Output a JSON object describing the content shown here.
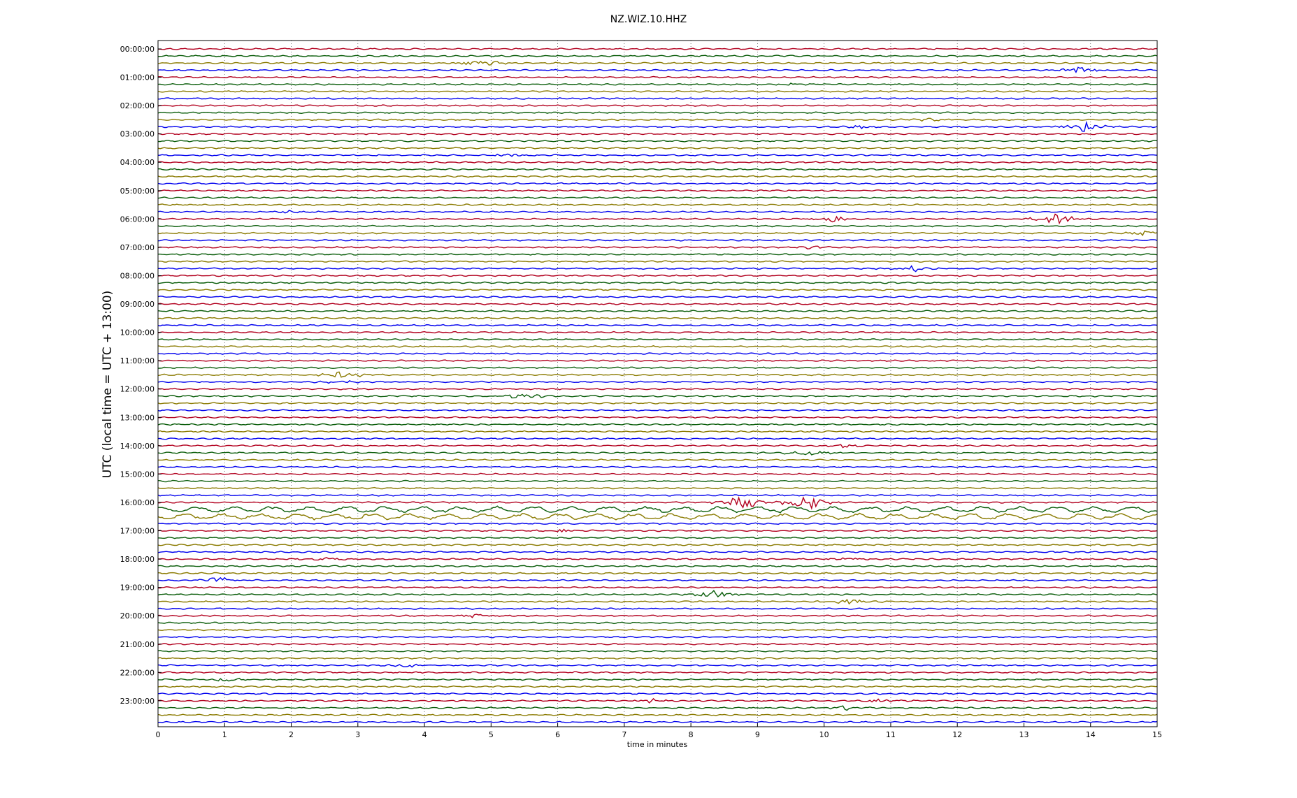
{
  "chart_data": {
    "type": "line",
    "title": "NZ.WIZ.10.HHZ",
    "xlabel": "time in minutes",
    "ylabel": "UTC (local time = UTC + 13:00)",
    "xlim": [
      0,
      15
    ],
    "x_ticks": [
      "0",
      "1",
      "2",
      "3",
      "4",
      "5",
      "6",
      "7",
      "8",
      "9",
      "10",
      "11",
      "12",
      "13",
      "14",
      "15"
    ],
    "y_tick_labels": [
      "00:00:00",
      "01:00:00",
      "02:00:00",
      "03:00:00",
      "04:00:00",
      "05:00:00",
      "06:00:00",
      "07:00:00",
      "08:00:00",
      "09:00:00",
      "10:00:00",
      "11:00:00",
      "12:00:00",
      "13:00:00",
      "14:00:00",
      "15:00:00",
      "16:00:00",
      "17:00:00",
      "18:00:00",
      "19:00:00",
      "20:00:00",
      "21:00:00",
      "22:00:00",
      "23:00:00"
    ],
    "trace_interval_minutes": 15,
    "trace_count": 96,
    "trace_colors": [
      "#b2001f",
      "#0a5d0a",
      "#8a7a00",
      "#0000ee"
    ],
    "grid": "vertical-dotted",
    "events": [
      {
        "trace": 2,
        "minute": 4.82,
        "amp": 0.7
      },
      {
        "trace": 3,
        "minute": 13.85,
        "amp": 0.5
      },
      {
        "trace": 5,
        "minute": 9.5,
        "amp": 0.3
      },
      {
        "trace": 11,
        "minute": 13.9,
        "amp": 0.9
      },
      {
        "trace": 11,
        "minute": 10.5,
        "amp": 0.3
      },
      {
        "trace": 10,
        "minute": 11.6,
        "amp": 0.3
      },
      {
        "trace": 15,
        "minute": 5.3,
        "amp": 0.3
      },
      {
        "trace": 23,
        "minute": 2.0,
        "amp": 0.3
      },
      {
        "trace": 24,
        "minute": 10.1,
        "amp": 0.5
      },
      {
        "trace": 24,
        "minute": 13.5,
        "amp": 1.0
      },
      {
        "trace": 26,
        "minute": 14.8,
        "amp": 0.4
      },
      {
        "trace": 28,
        "minute": 9.8,
        "amp": 0.3
      },
      {
        "trace": 31,
        "minute": 11.35,
        "amp": 0.5
      },
      {
        "trace": 46,
        "minute": 2.8,
        "amp": 0.6
      },
      {
        "trace": 47,
        "minute": 2.7,
        "amp": 0.3
      },
      {
        "trace": 49,
        "minute": 5.5,
        "amp": 0.5
      },
      {
        "trace": 56,
        "minute": 10.3,
        "amp": 0.3
      },
      {
        "trace": 57,
        "minute": 9.8,
        "amp": 0.6
      },
      {
        "trace": 64,
        "minute": 9.7,
        "amp": 1.6
      },
      {
        "trace": 64,
        "minute": 8.75,
        "amp": 1.4
      },
      {
        "trace": 68,
        "minute": 6.1,
        "amp": 0.3
      },
      {
        "trace": 72,
        "minute": 2.5,
        "amp": 0.3
      },
      {
        "trace": 72,
        "minute": 10.35,
        "amp": 0.3
      },
      {
        "trace": 75,
        "minute": 0.95,
        "amp": 0.6
      },
      {
        "trace": 77,
        "minute": 8.35,
        "amp": 0.7
      },
      {
        "trace": 78,
        "minute": 10.4,
        "amp": 0.4
      },
      {
        "trace": 80,
        "minute": 4.7,
        "amp": 0.3
      },
      {
        "trace": 87,
        "minute": 3.7,
        "amp": 0.3
      },
      {
        "trace": 89,
        "minute": 1.0,
        "amp": 0.3
      },
      {
        "trace": 92,
        "minute": 7.4,
        "amp": 0.3
      },
      {
        "trace": 92,
        "minute": 10.8,
        "amp": 0.4
      },
      {
        "trace": 93,
        "minute": 10.3,
        "amp": 0.4
      }
    ]
  }
}
